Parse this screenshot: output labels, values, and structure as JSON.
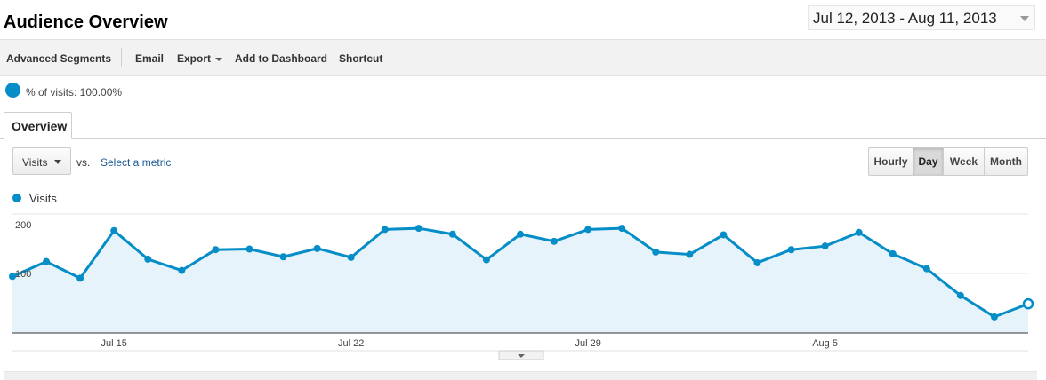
{
  "header": {
    "title": "Audience Overview",
    "date_range": "Jul 12, 2013 - Aug 11, 2013"
  },
  "toolbar": {
    "advanced_segments": "Advanced Segments",
    "email": "Email",
    "export": "Export",
    "add_to_dashboard": "Add to Dashboard",
    "shortcut": "Shortcut"
  },
  "segment": {
    "label": "% of visits: 100.00%"
  },
  "tabs": [
    {
      "label": "Overview"
    }
  ],
  "controls": {
    "metric": "Visits",
    "vs": "vs.",
    "select_metric": "Select a metric",
    "periods": [
      "Hourly",
      "Day",
      "Week",
      "Month"
    ],
    "active_period": "Day"
  },
  "chart_data": {
    "type": "area",
    "series": [
      {
        "name": "Visits",
        "color": "#058dc7",
        "x": [
          "Jul 12",
          "Jul 13",
          "Jul 14",
          "Jul 15",
          "Jul 16",
          "Jul 17",
          "Jul 18",
          "Jul 19",
          "Jul 20",
          "Jul 21",
          "Jul 22",
          "Jul 23",
          "Jul 24",
          "Jul 25",
          "Jul 26",
          "Jul 27",
          "Jul 28",
          "Jul 29",
          "Jul 30",
          "Jul 31",
          "Aug 1",
          "Aug 2",
          "Aug 3",
          "Aug 4",
          "Aug 5",
          "Aug 6",
          "Aug 7",
          "Aug 8",
          "Aug 9",
          "Aug 10",
          "Aug 11"
        ],
        "values": [
          95,
          120,
          92,
          172,
          124,
          105,
          140,
          141,
          128,
          142,
          127,
          174,
          176,
          166,
          123,
          166,
          154,
          174,
          176,
          136,
          132,
          165,
          118,
          140,
          146,
          169,
          133,
          108,
          63,
          27,
          49
        ]
      }
    ],
    "y_ticks": [
      100,
      200
    ],
    "x_tick_labels": [
      "Jul 15",
      "Jul 22",
      "Jul 29",
      "Aug 5"
    ],
    "ylim": [
      0,
      200
    ],
    "grid": true,
    "legend": "top-left"
  }
}
